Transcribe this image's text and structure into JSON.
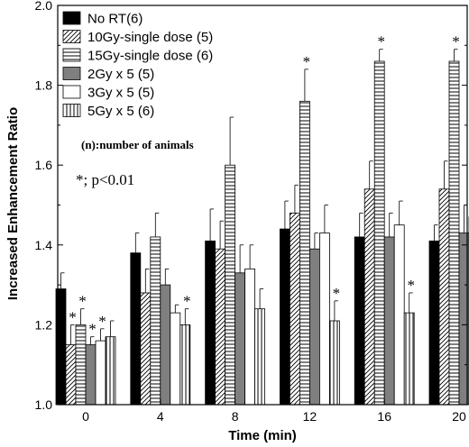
{
  "chart_data": {
    "type": "bar",
    "xlabel": "Time (min)",
    "ylabel": "Increased Enhancement Ratio",
    "ylim": [
      1.0,
      2.0
    ],
    "yticks": [
      "1.0",
      "1.2",
      "1.4",
      "1.6",
      "1.8",
      "2.0"
    ],
    "categories": [
      "0",
      "4",
      "8",
      "12",
      "16",
      "20"
    ],
    "series": [
      {
        "name": "No RT(6)",
        "pattern": "solid",
        "values": [
          1.29,
          1.38,
          1.41,
          1.44,
          1.42,
          1.41
        ],
        "errors": [
          0.04,
          0.05,
          0.08,
          0.07,
          0.06,
          0.04
        ]
      },
      {
        "name": "10Gy-single dose (5)",
        "pattern": "diagonal",
        "values": [
          1.15,
          1.28,
          1.39,
          1.48,
          1.54,
          1.54
        ],
        "errors": [
          0.05,
          0.06,
          0.07,
          0.07,
          0.07,
          0.07
        ]
      },
      {
        "name": "15Gy-single dose (6)",
        "pattern": "horizontal",
        "values": [
          1.2,
          1.42,
          1.6,
          1.76,
          1.86,
          1.86
        ],
        "errors": [
          0.04,
          0.06,
          0.12,
          0.08,
          0.03,
          0.03
        ]
      },
      {
        "name": "2Gy x 5 (5)",
        "pattern": "gray",
        "values": [
          1.15,
          1.3,
          1.33,
          1.39,
          1.42,
          1.43
        ],
        "errors": [
          0.02,
          0.04,
          0.07,
          0.04,
          0.06,
          0.07
        ]
      },
      {
        "name": "3Gy x 5 (5)",
        "pattern": "open",
        "values": [
          1.16,
          1.23,
          1.34,
          1.43,
          1.45,
          1.47
        ],
        "errors": [
          0.03,
          0.02,
          0.06,
          0.07,
          0.06,
          0.05
        ]
      },
      {
        "name": "5Gy x 5 (6)",
        "pattern": "vertical",
        "values": [
          1.17,
          1.2,
          1.24,
          1.21,
          1.23,
          1.21
        ],
        "errors": [
          0.04,
          0.04,
          0.05,
          0.05,
          0.05,
          0.06
        ]
      }
    ],
    "significance": [
      {
        "category": 0,
        "series": 1,
        "label": "*"
      },
      {
        "category": 0,
        "series": 2,
        "label": "*"
      },
      {
        "category": 0,
        "series": 3,
        "label": "*"
      },
      {
        "category": 0,
        "series": 4,
        "label": "*"
      },
      {
        "category": 1,
        "series": 5,
        "label": "*"
      },
      {
        "category": 3,
        "series": 2,
        "label": "*"
      },
      {
        "category": 3,
        "series": 5,
        "label": "*"
      },
      {
        "category": 4,
        "series": 2,
        "label": "*"
      },
      {
        "category": 4,
        "series": 5,
        "label": "*"
      },
      {
        "category": 5,
        "series": 2,
        "label": "*"
      },
      {
        "category": 5,
        "series": 5,
        "label": "*"
      }
    ],
    "legend_note": "(n):number of animals",
    "significance_note": "*; p<0.01",
    "legend_position": "top-left",
    "colors": {
      "solid": "#000000",
      "gray": "#7f7f7f",
      "open": "#ffffff",
      "stroke": "#000000"
    }
  }
}
